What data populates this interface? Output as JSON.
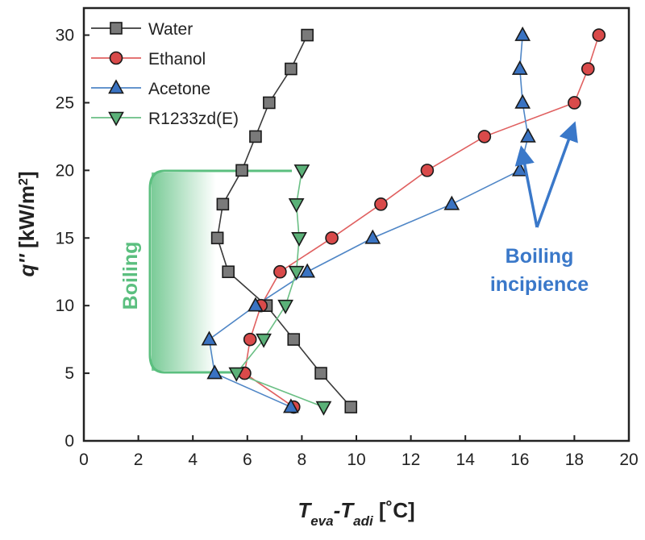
{
  "chart_data": {
    "type": "line",
    "xlabel_main": "T",
    "xlabel_sub1": "eva",
    "xlabel_sep": "-T",
    "xlabel_sub2": "adi",
    "xlabel_unit": " [˚C]",
    "ylabel_main": "q''",
    "ylabel_unit": " [kW/m",
    "ylabel_sup": "2",
    "ylabel_close": "]",
    "xlim": [
      0,
      20
    ],
    "ylim": [
      0,
      32
    ],
    "xticks": [
      "0",
      "2",
      "4",
      "6",
      "8",
      "10",
      "12",
      "14",
      "16",
      "18",
      "20"
    ],
    "yticks": [
      "0",
      "5",
      "10",
      "15",
      "20",
      "25",
      "30"
    ],
    "series": [
      {
        "name": "Water",
        "marker": "square",
        "color": "#3a3a3a",
        "fill": "#7a7a7a",
        "points": [
          [
            9.8,
            2.5
          ],
          [
            8.7,
            5
          ],
          [
            7.7,
            7.5
          ],
          [
            6.7,
            10
          ],
          [
            5.3,
            12.5
          ],
          [
            4.9,
            15
          ],
          [
            5.1,
            17.5
          ],
          [
            5.8,
            20
          ],
          [
            6.3,
            22.5
          ],
          [
            6.8,
            25
          ],
          [
            7.6,
            27.5
          ],
          [
            8.2,
            30
          ]
        ]
      },
      {
        "name": "Ethanol",
        "marker": "circle",
        "color": "#e06060",
        "fill": "#d94a4a",
        "points": [
          [
            7.7,
            2.5
          ],
          [
            5.9,
            5
          ],
          [
            6.1,
            7.5
          ],
          [
            6.5,
            10
          ],
          [
            7.2,
            12.5
          ],
          [
            9.1,
            15
          ],
          [
            10.9,
            17.5
          ],
          [
            12.6,
            20
          ],
          [
            14.7,
            22.5
          ],
          [
            18.0,
            25
          ],
          [
            18.5,
            27.5
          ],
          [
            18.9,
            30
          ]
        ]
      },
      {
        "name": "Acetone",
        "marker": "triangle-up",
        "color": "#4f86c6",
        "fill": "#3a73c2",
        "points": [
          [
            7.6,
            2.5
          ],
          [
            4.8,
            5
          ],
          [
            4.6,
            7.5
          ],
          [
            6.3,
            10
          ],
          [
            8.2,
            12.5
          ],
          [
            10.6,
            15
          ],
          [
            13.5,
            17.5
          ],
          [
            16.0,
            20
          ],
          [
            16.3,
            22.5
          ],
          [
            16.1,
            25
          ],
          [
            16.0,
            27.5
          ],
          [
            16.1,
            30
          ]
        ]
      },
      {
        "name": "R1233zd(E)",
        "marker": "triangle-down",
        "color": "#6abf84",
        "fill": "#5bb178",
        "points": [
          [
            8.8,
            2.5
          ],
          [
            5.6,
            5
          ],
          [
            6.6,
            7.5
          ],
          [
            7.4,
            10
          ],
          [
            7.8,
            12.5
          ],
          [
            7.9,
            15
          ],
          [
            7.8,
            17.5
          ],
          [
            8.0,
            20
          ]
        ]
      }
    ],
    "annotations": {
      "boiling": "Boiling",
      "incipience_line1": "Boiling",
      "incipience_line2": "incipience"
    }
  }
}
